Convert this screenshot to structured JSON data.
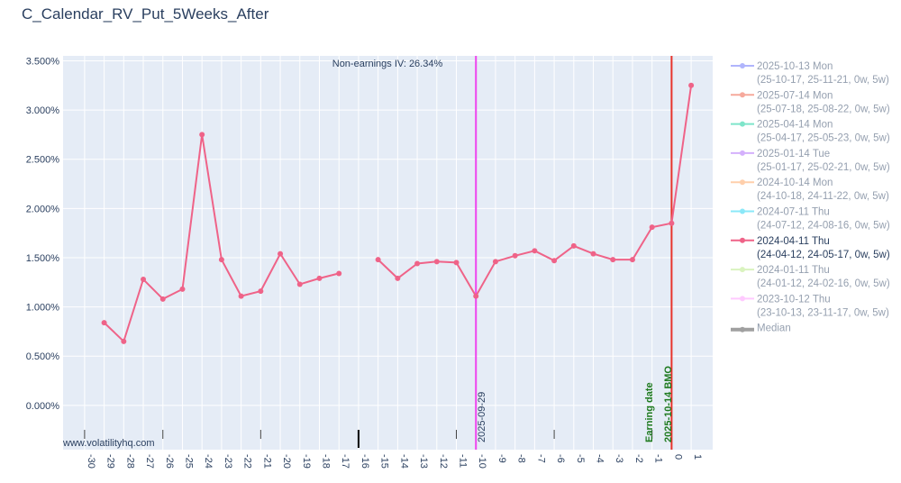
{
  "chart_data": {
    "type": "line",
    "title": "C_Calendar_RV_Put_5Weeks_After",
    "xlabel": "",
    "ylabel": "",
    "x_ticks": [
      "-30",
      "-29",
      "-28",
      "-27",
      "-26",
      "-25",
      "-24",
      "-23",
      "-22",
      "-21",
      "-20",
      "-19",
      "-18",
      "-17",
      "-16",
      "-15",
      "-14",
      "-13",
      "-12",
      "-11",
      "-10",
      "-9",
      "-8",
      "-7",
      "-6",
      "-5",
      "-4",
      "-3",
      "-2",
      "-1",
      "0",
      "1"
    ],
    "y_ticks": [
      "0.000%",
      "0.500%",
      "1.000%",
      "1.500%",
      "2.000%",
      "2.500%",
      "3.000%",
      "3.500%"
    ],
    "ylim": [
      -0.0045,
      0.0355
    ],
    "xlim": [
      -31.1,
      2.1
    ],
    "grid": true,
    "legend_position": "right",
    "annotations": {
      "non_earnings_iv": "Non-earnings IV: 26.34%",
      "watermark": "www.volatilityhq.com",
      "vline_1": {
        "x": -10,
        "label": "2025-09-29",
        "color": "#ee44ee"
      },
      "vline_2": {
        "x": 0,
        "label": "2025-10-14 BMO",
        "color": "#e8332b"
      },
      "earning_label": "Earning date"
    },
    "series": [
      {
        "name": "2025-10-13 Mon",
        "detail": "(25-10-17, 25-11-21, 0w, 5w)",
        "color": "#636efa",
        "visible": false,
        "points": []
      },
      {
        "name": "2025-07-14 Mon",
        "detail": "(25-07-18, 25-08-22, 0w, 5w)",
        "color": "#ef553b",
        "visible": false,
        "points": []
      },
      {
        "name": "2025-04-14 Mon",
        "detail": "(25-04-17, 25-05-23, 0w, 5w)",
        "color": "#00cc96",
        "visible": false,
        "points": []
      },
      {
        "name": "2025-01-14 Tue",
        "detail": "(25-01-17, 25-02-21, 0w, 5w)",
        "color": "#ab63fa",
        "visible": false,
        "points": []
      },
      {
        "name": "2024-10-14 Mon",
        "detail": "(24-10-18, 24-11-22, 0w, 5w)",
        "color": "#ffa15a",
        "visible": false,
        "points": []
      },
      {
        "name": "2024-07-11 Thu",
        "detail": "(24-07-12, 24-08-16, 0w, 5w)",
        "color": "#19d3f3",
        "visible": false,
        "points": []
      },
      {
        "name": "2024-04-11 Thu",
        "detail": "(24-04-12, 24-05-17, 0w, 5w)",
        "color": "#ef6388",
        "visible": true,
        "points": [
          [
            -29,
            0.0084
          ],
          [
            -28,
            0.0065
          ],
          [
            -27,
            0.0128
          ],
          [
            -26,
            0.0108
          ],
          [
            -25,
            0.0118
          ],
          [
            -24,
            0.0275
          ],
          [
            -23,
            0.0148
          ],
          [
            -22,
            0.0111
          ],
          [
            -21,
            0.0116
          ],
          [
            -20,
            0.0154
          ],
          [
            -19,
            0.0123
          ],
          [
            -18,
            0.0129
          ],
          [
            -17,
            0.0134
          ],
          null,
          [
            -15,
            0.0148
          ],
          [
            -14,
            0.0129
          ],
          [
            -13,
            0.0144
          ],
          [
            -12,
            0.0146
          ],
          [
            -11,
            0.0145
          ],
          [
            -10,
            0.0111
          ],
          [
            -9,
            0.0146
          ],
          [
            -8,
            0.0152
          ],
          [
            -7,
            0.0157
          ],
          [
            -6,
            0.0147
          ],
          [
            -5,
            0.0162
          ],
          [
            -4,
            0.0154
          ],
          [
            -3,
            0.0148
          ],
          [
            -2,
            0.0148
          ],
          [
            -1,
            0.0181
          ],
          [
            0,
            0.0185
          ],
          [
            1,
            0.0325
          ]
        ]
      },
      {
        "name": "2024-01-11 Thu",
        "detail": "(24-01-12, 24-02-16, 0w, 5w)",
        "color": "#b6e880",
        "visible": false,
        "points": []
      },
      {
        "name": "2023-10-12 Thu",
        "detail": "(23-10-13, 23-11-17, 0w, 5w)",
        "color": "#ff97ff",
        "visible": false,
        "points": []
      },
      {
        "name": "Median",
        "detail": "",
        "color": "#444444",
        "visible": false,
        "is_median": true,
        "points": []
      }
    ]
  }
}
